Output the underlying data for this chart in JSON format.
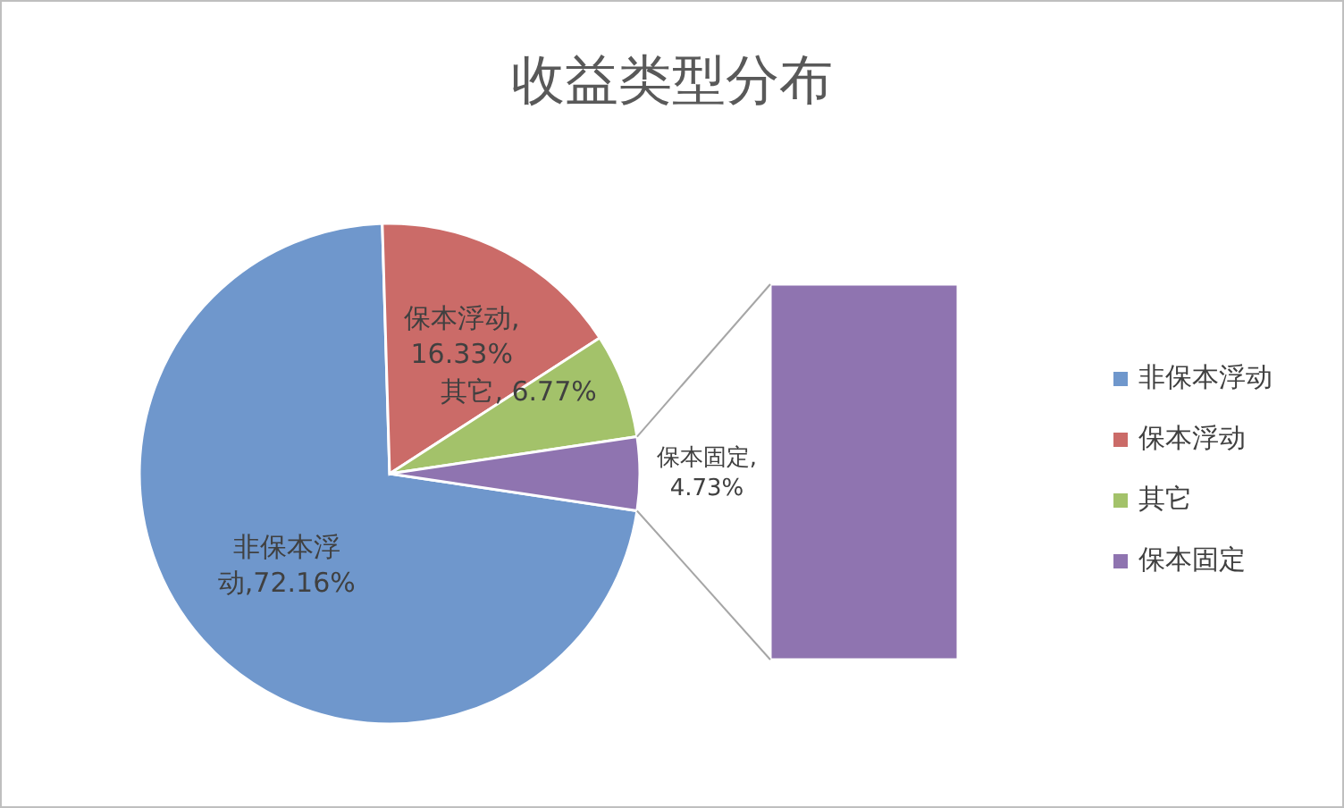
{
  "chart_data": {
    "type": "pie",
    "title": "收益类型分布",
    "categories": [
      "非保本浮动",
      "保本浮动",
      "其它",
      "保本固定"
    ],
    "values": [
      72.16,
      16.33,
      6.77,
      4.73
    ],
    "value_labels": [
      "非保本浮动,72.16%",
      "保本浮动, 16.33%",
      "其它, 6.77%",
      "保本固定, 4.73%"
    ],
    "colors": [
      "#6f97cc",
      "#cb6b68",
      "#a3c26a",
      "#8f74b0"
    ],
    "legend": "right"
  }
}
